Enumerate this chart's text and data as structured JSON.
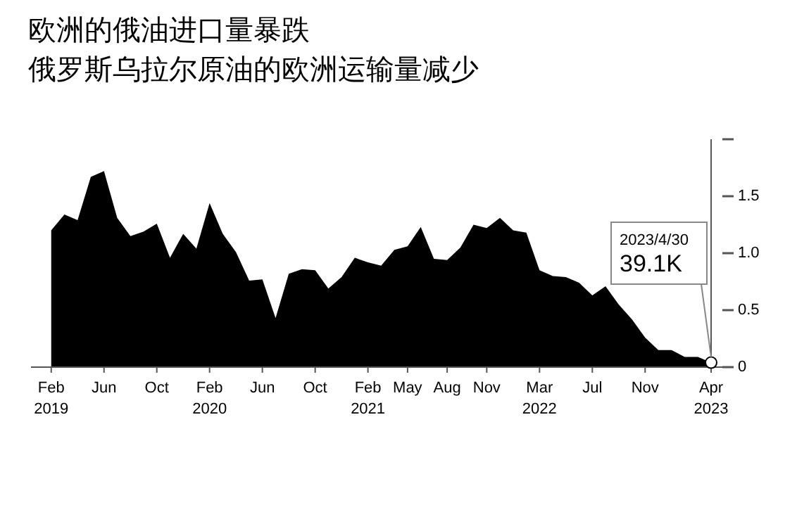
{
  "chart_data": {
    "type": "area",
    "title": "欧洲的俄油进口量暴跌",
    "subtitle": "俄罗斯乌拉尔原油的欧洲运输量减少",
    "x": [
      "2019-02",
      "2019-03",
      "2019-04",
      "2019-05",
      "2019-06",
      "2019-07",
      "2019-08",
      "2019-09",
      "2019-10",
      "2019-11",
      "2019-12",
      "2020-01",
      "2020-02",
      "2020-03",
      "2020-04",
      "2020-05",
      "2020-06",
      "2020-07",
      "2020-08",
      "2020-09",
      "2020-10",
      "2020-11",
      "2020-12",
      "2021-01",
      "2021-02",
      "2021-03",
      "2021-04",
      "2021-05",
      "2021-06",
      "2021-07",
      "2021-08",
      "2021-09",
      "2021-10",
      "2021-11",
      "2021-12",
      "2022-01",
      "2022-02",
      "2022-03",
      "2022-04",
      "2022-05",
      "2022-06",
      "2022-07",
      "2022-08",
      "2022-09",
      "2022-10",
      "2022-11",
      "2022-12",
      "2023-01",
      "2023-02",
      "2023-03",
      "2023-04"
    ],
    "series": [
      {
        "color": "#000000",
        "values": [
          1.2,
          1.34,
          1.29,
          1.67,
          1.72,
          1.31,
          1.15,
          1.19,
          1.26,
          0.96,
          1.17,
          1.04,
          1.44,
          1.17,
          1.01,
          0.76,
          0.77,
          0.43,
          0.82,
          0.86,
          0.85,
          0.69,
          0.79,
          0.96,
          0.92,
          0.89,
          1.03,
          1.06,
          1.23,
          0.95,
          0.94,
          1.05,
          1.25,
          1.22,
          1.31,
          1.2,
          1.18,
          0.85,
          0.8,
          0.79,
          0.74,
          0.63,
          0.71,
          0.55,
          0.42,
          0.26,
          0.15,
          0.15,
          0.09,
          0.09,
          0.04
        ]
      }
    ],
    "xlim": [
      "2018-12-15",
      "2023-04"
    ],
    "xticks": [
      {
        "value": "2019-02",
        "label": "Feb\n2019"
      },
      {
        "value": "2019-06",
        "label": "Jun"
      },
      {
        "value": "2019-10",
        "label": "Oct"
      },
      {
        "value": "2020-02",
        "label": "Feb\n2020"
      },
      {
        "value": "2020-06",
        "label": "Jun"
      },
      {
        "value": "2020-10",
        "label": "Oct"
      },
      {
        "value": "2021-02",
        "label": "Feb\n2021"
      },
      {
        "value": "2021-05",
        "label": "May"
      },
      {
        "value": "2021-08",
        "label": "Aug"
      },
      {
        "value": "2021-11",
        "label": "Nov"
      },
      {
        "value": "2022-03",
        "label": "Mar\n2022"
      },
      {
        "value": "2022-07",
        "label": "Jul"
      },
      {
        "value": "2022-11",
        "label": "Nov"
      },
      {
        "value": "2023-04",
        "label": "Apr\n2023"
      }
    ],
    "ylim": [
      0,
      2
    ],
    "yticks": [
      0,
      0.5,
      {
        "value": 1,
        "label": "1.0"
      },
      1.5,
      {
        "value": 2,
        "label": null
      }
    ],
    "annotations": [
      {
        "text": "2023/4/30\n39.1K",
        "x": "2023-04",
        "y": 0.04
      }
    ]
  }
}
